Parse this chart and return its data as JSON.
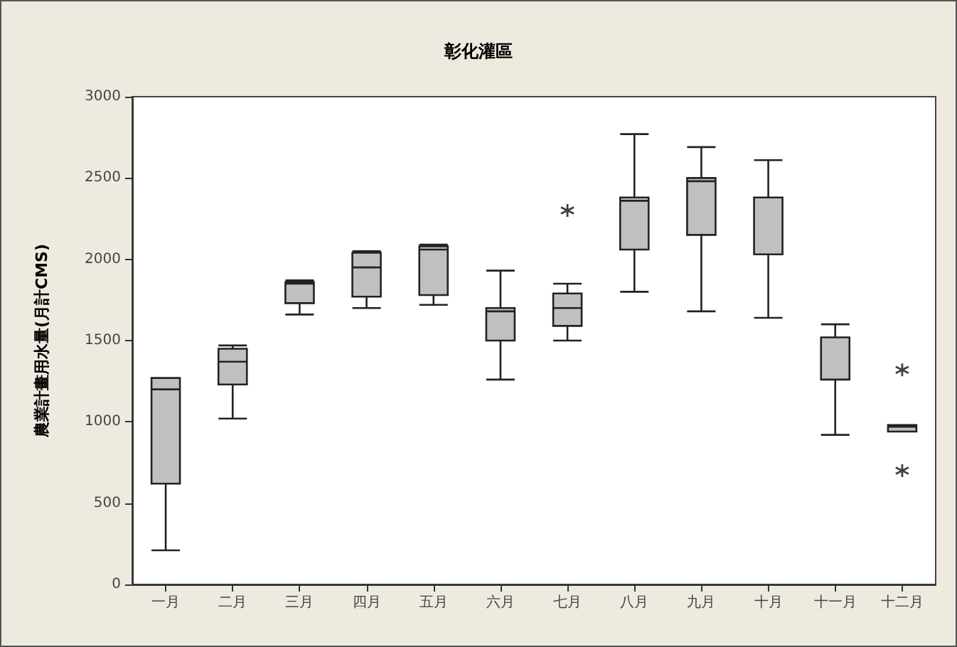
{
  "chart_data": {
    "type": "box",
    "title": "彰化灌區",
    "ylabel": "農業計畫用水量(月計CMS)",
    "categories": [
      "一月",
      "二月",
      "三月",
      "四月",
      "五月",
      "六月",
      "七月",
      "八月",
      "九月",
      "十月",
      "十一月",
      "十二月"
    ],
    "color": "#c0c0c0",
    "boxes": [
      {
        "low": 210,
        "q1": 620,
        "median": 1200,
        "q3": 1270,
        "high": 1270
      },
      {
        "low": 1020,
        "q1": 1230,
        "median": 1370,
        "q3": 1450,
        "high": 1470
      },
      {
        "low": 1660,
        "q1": 1730,
        "median": 1850,
        "q3": 1860,
        "high": 1870
      },
      {
        "low": 1700,
        "q1": 1770,
        "median": 1950,
        "q3": 2040,
        "high": 2050
      },
      {
        "low": 1720,
        "q1": 1780,
        "median": 2060,
        "q3": 2080,
        "high": 2090
      },
      {
        "low": 1260,
        "q1": 1500,
        "median": 1680,
        "q3": 1700,
        "high": 1930
      },
      {
        "low": 1500,
        "q1": 1590,
        "median": 1700,
        "q3": 1790,
        "high": 1850,
        "outliers": [
          2300
        ]
      },
      {
        "low": 1800,
        "q1": 2060,
        "median": 2360,
        "q3": 2380,
        "high": 2770
      },
      {
        "low": 1680,
        "q1": 2150,
        "median": 2480,
        "q3": 2500,
        "high": 2690
      },
      {
        "low": 1640,
        "q1": 2030,
        "median": 2380,
        "q3": 2380,
        "high": 2610
      },
      {
        "low": 920,
        "q1": 1260,
        "median": 1520,
        "q3": 1520,
        "high": 1600
      },
      {
        "low": 940,
        "q1": 940,
        "median": 970,
        "q3": 980,
        "high": 980,
        "outliers": [
          1320,
          700
        ]
      }
    ],
    "ylim": [
      0,
      3000
    ],
    "yticks": [
      0,
      500,
      1000,
      1500,
      2000,
      2500,
      3000
    ],
    "grid": false
  }
}
